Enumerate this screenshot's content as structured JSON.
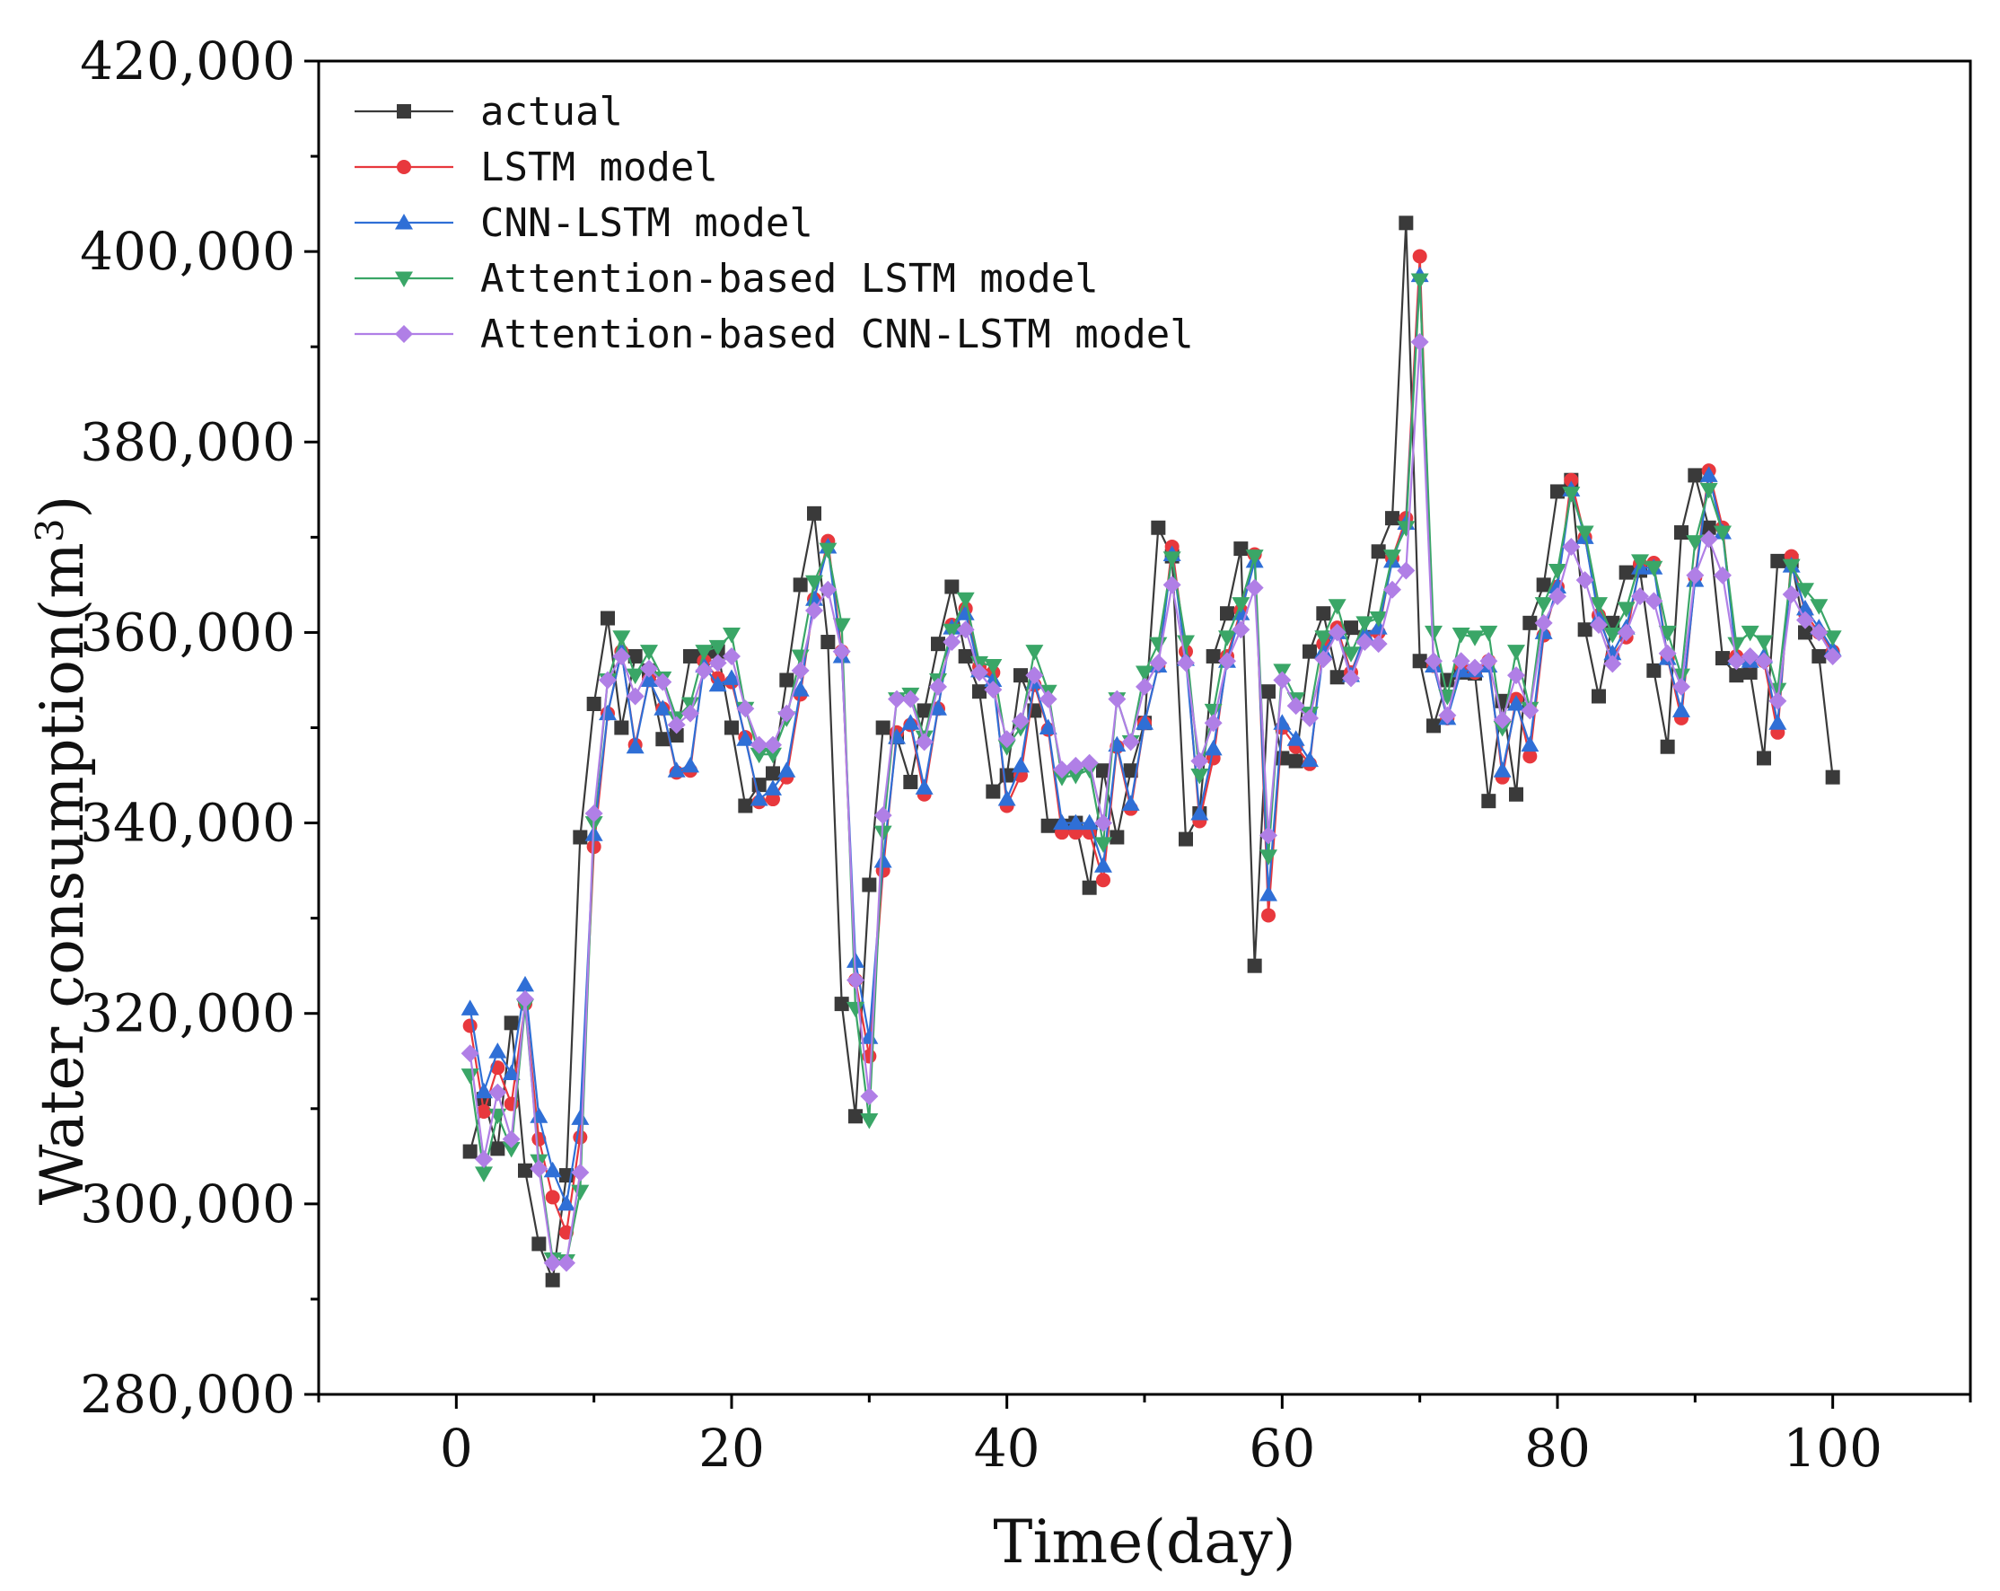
{
  "chart_data": {
    "type": "line",
    "xlabel": "Time(day)",
    "ylabel_main": "Water consumption(m",
    "ylabel_sup": "3",
    "ylabel_close": ")",
    "xlim": [
      -10,
      110
    ],
    "ylim": [
      280000,
      420000
    ],
    "x_ticks": [
      0,
      20,
      40,
      60,
      80,
      100
    ],
    "x_tick_labels": [
      "0",
      "20",
      "40",
      "60",
      "80",
      "100"
    ],
    "y_ticks": [
      280000,
      300000,
      320000,
      340000,
      360000,
      380000,
      400000,
      420000
    ],
    "y_tick_labels": [
      "280,000",
      "300,000",
      "320,000",
      "340,000",
      "360,000",
      "380,000",
      "400,000",
      "420,000"
    ],
    "x": [
      1,
      2,
      3,
      4,
      5,
      6,
      7,
      8,
      9,
      10,
      11,
      12,
      13,
      14,
      15,
      16,
      17,
      18,
      19,
      20,
      21,
      22,
      23,
      24,
      25,
      26,
      27,
      28,
      29,
      30,
      31,
      32,
      33,
      34,
      35,
      36,
      37,
      38,
      39,
      40,
      41,
      42,
      43,
      44,
      45,
      46,
      47,
      48,
      49,
      50,
      51,
      52,
      53,
      54,
      55,
      56,
      57,
      58,
      59,
      60,
      61,
      62,
      63,
      64,
      65,
      66,
      67,
      68,
      69,
      70,
      71,
      72,
      73,
      74,
      75,
      76,
      77,
      78,
      79,
      80,
      81,
      82,
      83,
      84,
      85,
      86,
      87,
      88,
      89,
      90,
      91,
      92,
      93,
      94,
      95,
      96,
      97,
      98,
      99,
      100
    ],
    "legend_position": "top-left",
    "series": [
      {
        "name": "actual",
        "color": "#3a3a3a",
        "marker": "square",
        "values": [
          305500,
          311000,
          305800,
          319000,
          303500,
          295800,
          292000,
          303000,
          338500,
          352500,
          361500,
          350000,
          357500,
          356000,
          348800,
          349200,
          357500,
          357500,
          358000,
          350000,
          341800,
          344000,
          345200,
          355000,
          365000,
          372500,
          359000,
          321000,
          309200,
          333500,
          350000,
          349000,
          344300,
          351800,
          358800,
          364800,
          357500,
          353800,
          343300,
          345000,
          355500,
          351800,
          339700,
          339700,
          340000,
          333200,
          345500,
          338500,
          345500,
          350500,
          371000,
          368000,
          338300,
          341000,
          357500,
          362000,
          368800,
          325000,
          353800,
          346800,
          346500,
          358000,
          362000,
          355300,
          360500,
          359500,
          368500,
          372000,
          403000,
          357000,
          350200,
          355000,
          355800,
          355700,
          342300,
          352800,
          343000,
          361000,
          365000,
          374800,
          376000,
          360300,
          353300,
          361000,
          366300,
          366500,
          356000,
          348000,
          370500,
          376500,
          371000,
          357300,
          355500,
          355800,
          346800,
          367500,
          367500,
          360000,
          357500,
          344800
        ]
      },
      {
        "name": "LSTM model",
        "color": "#e8383d",
        "marker": "circle",
        "values": [
          318700,
          309700,
          314300,
          310500,
          321000,
          306800,
          300700,
          297000,
          307000,
          337500,
          351500,
          358000,
          348200,
          355000,
          352000,
          345300,
          345500,
          357000,
          355200,
          354800,
          349000,
          342200,
          342500,
          344800,
          353500,
          363500,
          369600,
          358000,
          323500,
          315500,
          335000,
          349500,
          350300,
          343000,
          352000,
          360800,
          362500,
          356400,
          355800,
          341800,
          345000,
          354500,
          349800,
          339000,
          339000,
          339000,
          334000,
          348000,
          341500,
          350500,
          356500,
          369000,
          358000,
          340200,
          346800,
          357500,
          362300,
          368200,
          330300,
          350000,
          348000,
          346200,
          358800,
          360500,
          355800,
          359500,
          360000,
          367800,
          372000,
          399500,
          356500,
          351000,
          356500,
          355800,
          357000,
          344800,
          353000,
          347000,
          359700,
          364800,
          376000,
          370000,
          361800,
          357500,
          359500,
          367200,
          367300,
          357300,
          351000,
          365800,
          377000,
          371000,
          357500,
          357000,
          357000,
          349500,
          368000,
          362000,
          360000,
          358000
        ]
      },
      {
        "name": "CNN-LSTM model",
        "color": "#2f6fd6",
        "marker": "triangle-up",
        "values": [
          320500,
          311800,
          316000,
          313700,
          323000,
          309200,
          303500,
          300000,
          309000,
          338800,
          351500,
          358000,
          348000,
          355000,
          352000,
          345500,
          346000,
          356500,
          354500,
          355200,
          348800,
          342500,
          343600,
          345500,
          354000,
          363500,
          369000,
          357500,
          325500,
          317500,
          336000,
          349000,
          350500,
          343700,
          352000,
          360500,
          362000,
          356000,
          355000,
          342500,
          346000,
          354800,
          350000,
          340000,
          340000,
          340000,
          335500,
          348200,
          342000,
          350500,
          356500,
          368200,
          357200,
          341000,
          347800,
          357000,
          362000,
          367500,
          332500,
          350500,
          348800,
          346600,
          358000,
          360000,
          355500,
          359800,
          360500,
          367500,
          371500,
          397500,
          356500,
          351000,
          356000,
          356000,
          356500,
          345500,
          352500,
          348200,
          360000,
          364800,
          375000,
          370000,
          361500,
          357800,
          360500,
          366800,
          366800,
          357300,
          351800,
          365500,
          376500,
          370500,
          357300,
          357000,
          357500,
          350500,
          367000,
          362500,
          360500,
          358200
        ]
      },
      {
        "name": "Attention-based LSTM model",
        "color": "#3aa667",
        "marker": "triangle-down",
        "values": [
          313500,
          303200,
          309300,
          305800,
          320800,
          304500,
          294200,
          294000,
          301300,
          340000,
          355000,
          359500,
          355500,
          358000,
          355200,
          351000,
          352500,
          358000,
          358500,
          359800,
          352000,
          347200,
          347200,
          351000,
          357500,
          365300,
          368700,
          360800,
          320500,
          308800,
          339000,
          353000,
          353500,
          349000,
          355000,
          360200,
          363500,
          356800,
          356500,
          348000,
          350000,
          358000,
          353800,
          344800,
          345000,
          345600,
          337800,
          353000,
          348500,
          355800,
          358800,
          367800,
          359000,
          345000,
          351800,
          359500,
          363000,
          368000,
          336500,
          356000,
          353000,
          351500,
          359500,
          362800,
          357800,
          361000,
          361500,
          368000,
          371000,
          397000,
          360000,
          353300,
          359800,
          359500,
          360000,
          350000,
          358000,
          352000,
          363000,
          366500,
          374600,
          370500,
          363000,
          359800,
          362500,
          367500,
          366800,
          360000,
          355500,
          369500,
          375000,
          370500,
          358800,
          360000,
          359000,
          354000,
          367000,
          364500,
          362800,
          359500
        ]
      },
      {
        "name": "Attention-based CNN-LSTM model",
        "color": "#b07fe6",
        "marker": "diamond",
        "values": [
          315800,
          304700,
          311700,
          306800,
          321500,
          303700,
          293800,
          293800,
          303300,
          341000,
          355000,
          357500,
          353300,
          356200,
          354800,
          350300,
          351500,
          356000,
          356800,
          357500,
          352000,
          348200,
          348200,
          351500,
          356000,
          362300,
          364500,
          358000,
          323500,
          311300,
          340800,
          353000,
          353000,
          348500,
          354300,
          359000,
          360300,
          355800,
          354000,
          348800,
          350700,
          355500,
          353000,
          345600,
          346000,
          346300,
          340000,
          353000,
          348500,
          354300,
          356800,
          365000,
          356800,
          346500,
          350500,
          357000,
          360300,
          364700,
          338700,
          355000,
          352300,
          351000,
          357200,
          360000,
          355200,
          359000,
          358800,
          364500,
          366500,
          390500,
          357000,
          351300,
          357000,
          356300,
          357000,
          350800,
          355500,
          351800,
          361000,
          363800,
          369000,
          365500,
          360800,
          356700,
          360000,
          363800,
          363300,
          357800,
          354300,
          366000,
          369800,
          366000,
          357000,
          357500,
          357000,
          352800,
          364000,
          361300,
          360000,
          357500
        ]
      }
    ]
  }
}
